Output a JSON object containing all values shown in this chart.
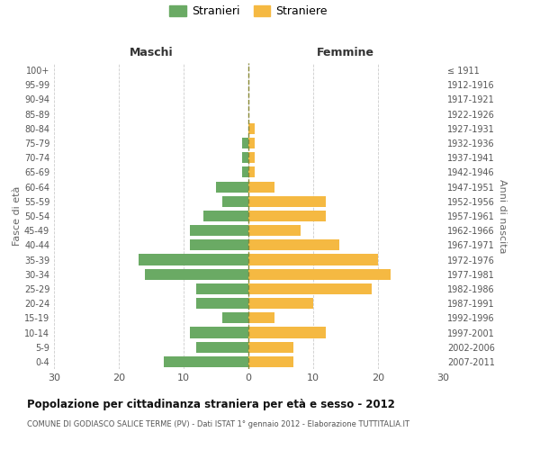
{
  "age_groups_bottom_to_top": [
    "0-4",
    "5-9",
    "10-14",
    "15-19",
    "20-24",
    "25-29",
    "30-34",
    "35-39",
    "40-44",
    "45-49",
    "50-54",
    "55-59",
    "60-64",
    "65-69",
    "70-74",
    "75-79",
    "80-84",
    "85-89",
    "90-94",
    "95-99",
    "100+"
  ],
  "birth_years_bottom_to_top": [
    "2007-2011",
    "2002-2006",
    "1997-2001",
    "1992-1996",
    "1987-1991",
    "1982-1986",
    "1977-1981",
    "1972-1976",
    "1967-1971",
    "1962-1966",
    "1957-1961",
    "1952-1956",
    "1947-1951",
    "1942-1946",
    "1937-1941",
    "1932-1936",
    "1927-1931",
    "1922-1926",
    "1917-1921",
    "1912-1916",
    "≤ 1911"
  ],
  "males_bottom_to_top": [
    13,
    8,
    9,
    4,
    8,
    8,
    16,
    17,
    9,
    9,
    7,
    4,
    5,
    1,
    1,
    1,
    0,
    0,
    0,
    0,
    0
  ],
  "females_bottom_to_top": [
    7,
    7,
    12,
    4,
    10,
    19,
    22,
    20,
    14,
    8,
    12,
    12,
    4,
    1,
    1,
    1,
    1,
    0,
    0,
    0,
    0
  ],
  "male_color": "#6aaa64",
  "female_color": "#f5b942",
  "grid_color": "#cccccc",
  "dashed_line_color": "#888833",
  "xlim": 30,
  "title": "Popolazione per cittadinanza straniera per età e sesso - 2012",
  "subtitle": "COMUNE DI GODIASCO SALICE TERME (PV) - Dati ISTAT 1° gennaio 2012 - Elaborazione TUTTITALIA.IT",
  "xlabel_left": "Maschi",
  "xlabel_right": "Femmine",
  "ylabel_left": "Fasce di età",
  "ylabel_right": "Anni di nascita",
  "legend_male": "Stranieri",
  "legend_female": "Straniere",
  "background_color": "#ffffff",
  "bar_height": 0.75
}
